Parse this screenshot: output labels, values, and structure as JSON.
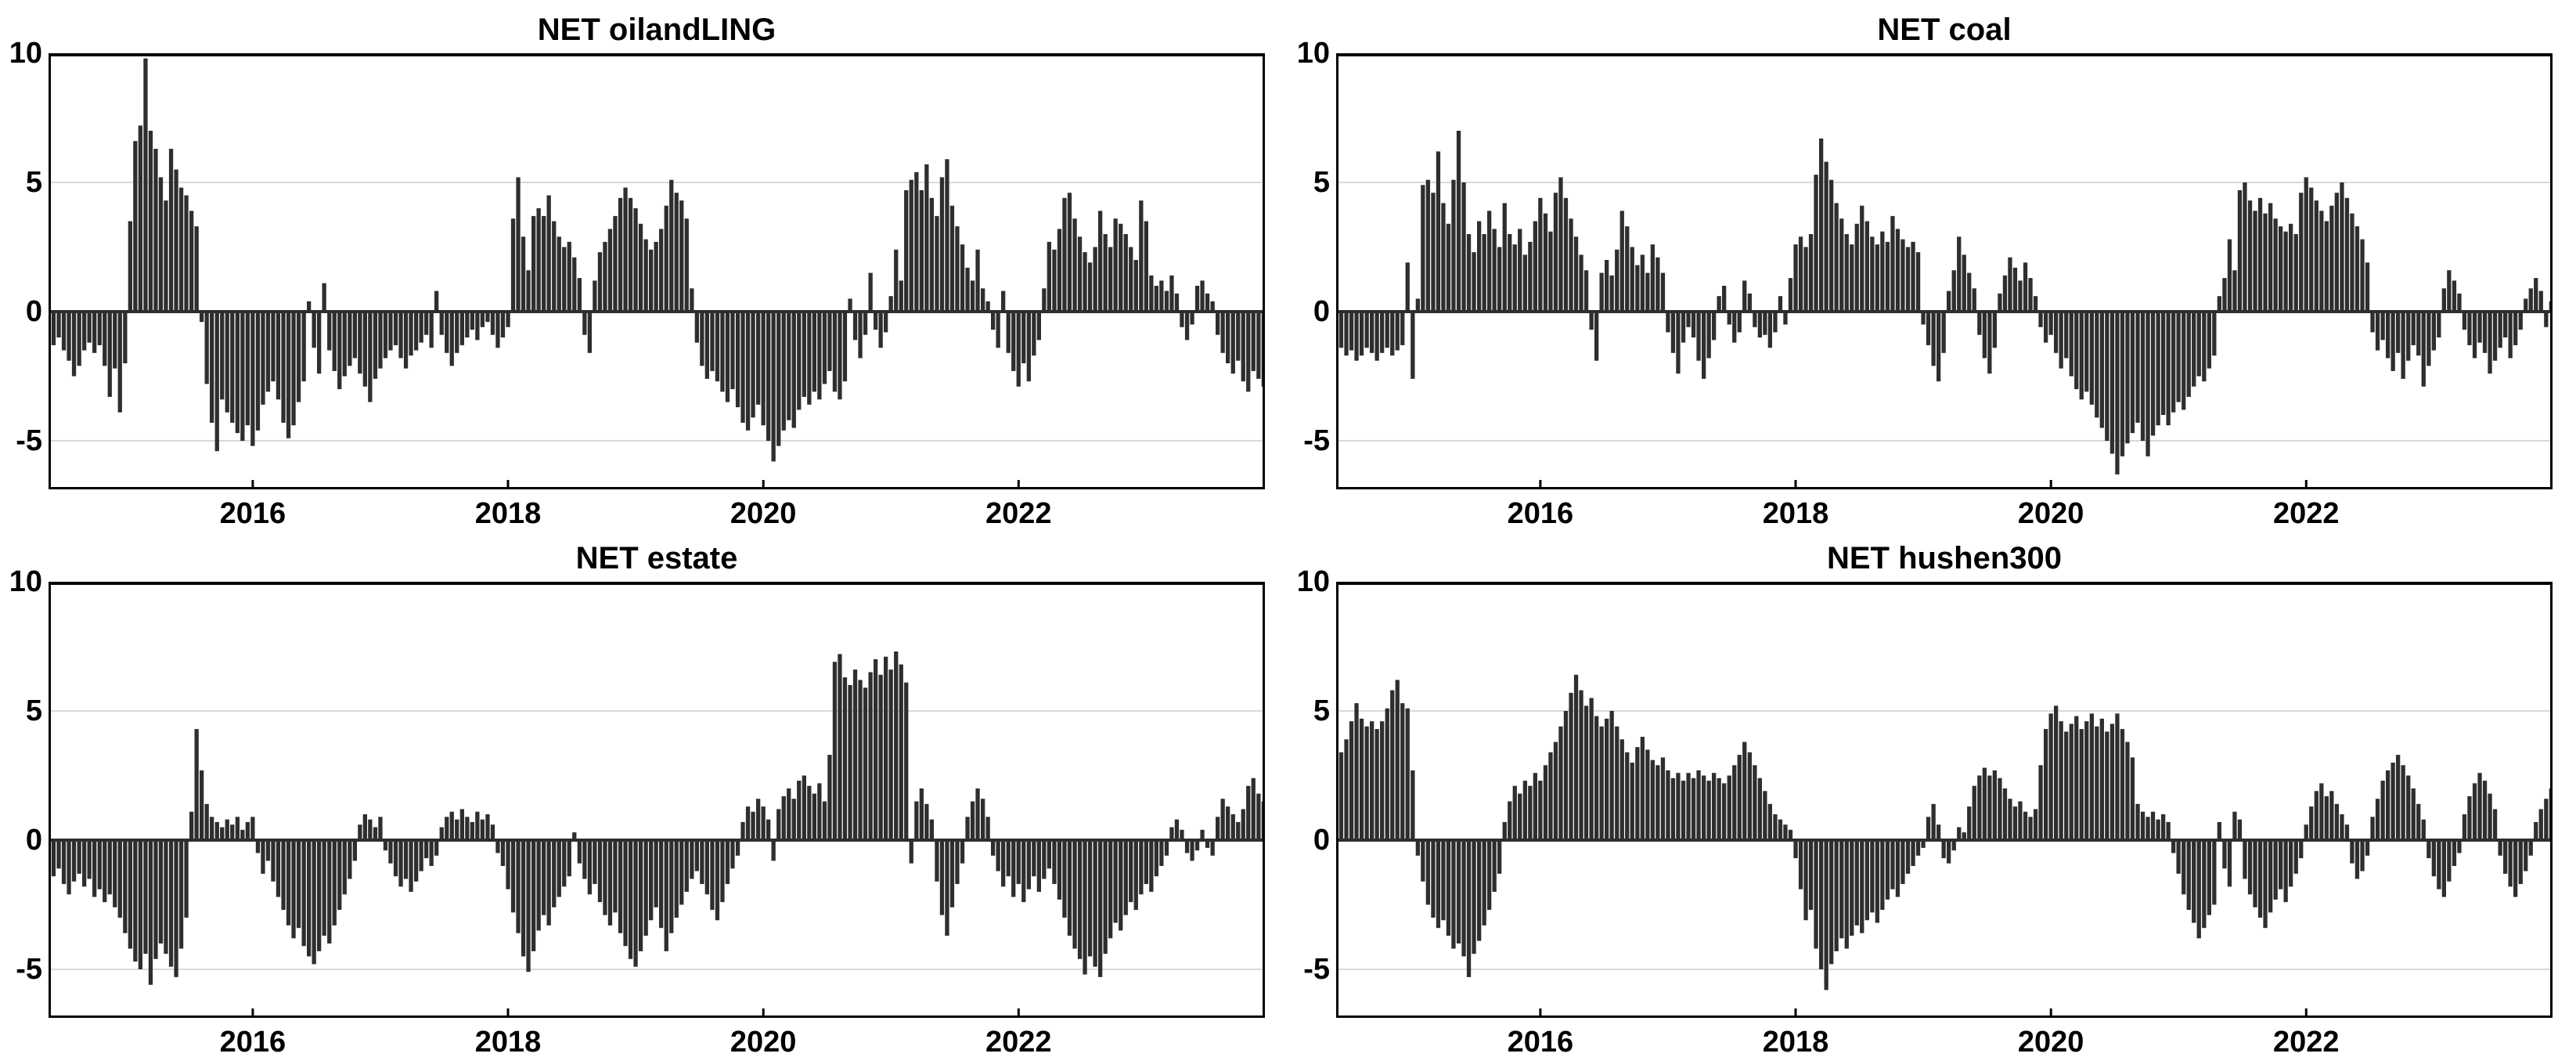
{
  "style": {
    "bar_color": "#2e2e2e",
    "grid_color": "#d9d9d9",
    "axis_color": "#000000",
    "background": "#ffffff"
  },
  "axes": {
    "y_ticks": [
      10,
      5,
      0,
      -5
    ],
    "x_ticks": [
      2016,
      2018,
      2020,
      2022
    ],
    "grid_values": [
      5,
      0,
      -5
    ],
    "ylim": [
      -6.88,
      10
    ],
    "xlim": [
      2014.4,
      2023.93
    ],
    "grid": true,
    "legend": "none"
  },
  "chart_data": [
    {
      "type": "bar",
      "title": "NET oilandLING",
      "xlabel": "",
      "ylabel": "",
      "x_start": 2014.4,
      "x_step": 0.04,
      "values": [
        -0.8,
        -1.3,
        -1.0,
        -1.5,
        -1.9,
        -2.5,
        -2.1,
        -1.5,
        -1.2,
        -1.6,
        -1.3,
        -2.1,
        -3.3,
        -2.2,
        -3.9,
        -2.0,
        3.5,
        6.6,
        7.2,
        9.8,
        7.0,
        6.3,
        5.2,
        4.3,
        6.3,
        5.5,
        4.8,
        4.5,
        3.9,
        3.3,
        -0.4,
        -2.8,
        -4.3,
        -5.4,
        -3.4,
        -3.9,
        -4.3,
        -4.7,
        -5.0,
        -4.4,
        -5.2,
        -4.6,
        -3.6,
        -3.1,
        -2.7,
        -3.4,
        -4.3,
        -4.9,
        -4.4,
        -3.5,
        -2.7,
        0.4,
        -1.4,
        -2.4,
        1.1,
        -1.5,
        -2.3,
        -3.0,
        -2.5,
        -2.1,
        -1.8,
        -2.4,
        -2.9,
        -3.5,
        -2.6,
        -2.2,
        -1.8,
        -1.5,
        -1.3,
        -1.8,
        -2.2,
        -1.7,
        -1.5,
        -1.2,
        -0.9,
        -1.4,
        0.8,
        -0.9,
        -1.6,
        -2.1,
        -1.6,
        -1.3,
        -1.0,
        -0.7,
        -1.1,
        -0.6,
        -0.4,
        -0.9,
        -1.4,
        -1.0,
        -0.6,
        3.6,
        5.2,
        2.9,
        1.6,
        3.7,
        4.0,
        3.7,
        4.5,
        3.5,
        2.9,
        2.5,
        2.7,
        2.1,
        1.3,
        -0.9,
        -1.6,
        1.2,
        2.3,
        2.7,
        3.2,
        3.7,
        4.4,
        4.8,
        4.4,
        4.0,
        3.4,
        2.8,
        2.4,
        2.7,
        3.2,
        4.1,
        5.1,
        4.6,
        4.3,
        3.6,
        0.9,
        -1.2,
        -2.1,
        -2.6,
        -2.3,
        -2.7,
        -3.1,
        -3.5,
        -3.0,
        -3.7,
        -4.3,
        -4.6,
        -4.1,
        -3.6,
        -4.4,
        -5.0,
        -5.8,
        -5.2,
        -4.6,
        -4.2,
        -4.5,
        -3.8,
        -3.3,
        -3.6,
        -3.1,
        -3.4,
        -2.8,
        -2.3,
        -3.1,
        -3.4,
        -2.7,
        0.5,
        -1.1,
        -1.8,
        -0.9,
        1.5,
        -0.7,
        -1.4,
        -0.8,
        0.6,
        2.4,
        1.2,
        4.7,
        5.1,
        5.4,
        4.7,
        5.7,
        4.4,
        3.7,
        5.2,
        5.9,
        4.1,
        3.3,
        2.6,
        1.7,
        1.2,
        2.4,
        0.9,
        0.4,
        -0.7,
        -1.4,
        0.8,
        -1.6,
        -2.3,
        -2.9,
        -2.0,
        -2.7,
        -1.7,
        -1.1,
        0.9,
        2.7,
        2.4,
        3.2,
        4.4,
        4.6,
        3.6,
        2.9,
        2.3,
        1.9,
        2.5,
        3.9,
        3.0,
        2.5,
        3.6,
        3.4,
        3.0,
        2.5,
        2.0,
        4.3,
        3.5,
        1.4,
        1.0,
        1.2,
        0.8,
        1.4,
        0.7,
        -0.6,
        -1.1,
        -0.5,
        1.0,
        1.2,
        0.7,
        0.4,
        -0.9,
        -1.6,
        -2.0,
        -2.4,
        -1.9,
        -2.7,
        -3.1,
        -2.3,
        -2.6,
        -2.9
      ]
    },
    {
      "type": "bar",
      "title": "NET coal",
      "xlabel": "",
      "ylabel": "",
      "x_start": 2014.4,
      "x_step": 0.04,
      "values": [
        -0.9,
        -1.4,
        -1.7,
        -1.5,
        -1.9,
        -1.7,
        -1.4,
        -1.6,
        -1.9,
        -1.6,
        -1.4,
        -1.7,
        -1.5,
        -1.3,
        1.9,
        -2.6,
        0.5,
        4.9,
        5.1,
        4.6,
        6.2,
        4.2,
        3.4,
        5.1,
        7.0,
        5.0,
        3.0,
        2.3,
        3.5,
        3.0,
        3.9,
        3.2,
        2.5,
        4.2,
        3.0,
        2.6,
        3.2,
        2.2,
        2.7,
        3.5,
        4.4,
        3.8,
        3.1,
        4.6,
        5.2,
        4.4,
        3.6,
        2.9,
        2.2,
        1.6,
        -0.7,
        -1.9,
        1.5,
        2.0,
        1.4,
        2.4,
        3.9,
        3.3,
        2.5,
        1.8,
        2.2,
        1.5,
        2.6,
        2.1,
        1.5,
        -0.8,
        -1.6,
        -2.4,
        -1.2,
        -0.6,
        -1.0,
        -1.9,
        -2.6,
        -1.8,
        -1.1,
        0.6,
        1.0,
        -0.5,
        -1.2,
        -0.8,
        1.2,
        0.7,
        -0.6,
        -1.0,
        -0.9,
        -1.4,
        -0.8,
        0.6,
        -0.5,
        1.3,
        2.6,
        2.9,
        2.5,
        3.0,
        5.3,
        6.7,
        5.8,
        5.1,
        4.2,
        3.6,
        3.0,
        2.6,
        3.4,
        4.1,
        3.5,
        2.9,
        2.6,
        3.1,
        2.7,
        3.7,
        3.2,
        2.8,
        2.5,
        2.7,
        2.3,
        -0.5,
        -1.3,
        -2.1,
        -2.7,
        -1.6,
        0.8,
        1.6,
        2.9,
        2.2,
        1.5,
        0.9,
        -0.9,
        -1.8,
        -2.4,
        -1.4,
        0.7,
        1.4,
        2.1,
        1.7,
        1.2,
        1.9,
        1.3,
        0.6,
        -0.6,
        -1.2,
        -0.9,
        -1.6,
        -2.2,
        -1.8,
        -2.5,
        -3.0,
        -3.4,
        -3.1,
        -3.6,
        -4.1,
        -4.5,
        -5.0,
        -5.5,
        -6.3,
        -5.6,
        -5.1,
        -4.7,
        -4.3,
        -5.0,
        -5.6,
        -4.8,
        -4.4,
        -4.0,
        -4.4,
        -3.9,
        -3.5,
        -3.8,
        -3.3,
        -2.9,
        -2.5,
        -2.7,
        -2.2,
        -1.7,
        0.6,
        1.3,
        2.8,
        1.6,
        4.7,
        5.0,
        4.3,
        3.9,
        4.4,
        3.8,
        4.2,
        3.6,
        3.3,
        3.1,
        3.4,
        3.0,
        4.6,
        5.2,
        4.8,
        4.3,
        3.9,
        3.5,
        4.1,
        4.6,
        5.0,
        4.4,
        3.8,
        3.3,
        2.8,
        1.9,
        -0.8,
        -1.5,
        -1.1,
        -1.8,
        -2.3,
        -1.6,
        -2.6,
        -1.9,
        -1.3,
        -1.7,
        -2.9,
        -2.1,
        -1.5,
        -1.0,
        0.9,
        1.6,
        1.2,
        0.7,
        -0.7,
        -1.3,
        -1.8,
        -1.2,
        -1.6,
        -2.4,
        -1.9,
        -1.4,
        -1.0,
        -1.8,
        -1.3,
        -0.7,
        0.5,
        0.9,
        1.3,
        0.8,
        -0.6,
        0.4
      ]
    },
    {
      "type": "bar",
      "title": "NET estate",
      "xlabel": "",
      "ylabel": "",
      "x_start": 2014.4,
      "x_step": 0.04,
      "values": [
        -0.9,
        -1.4,
        -1.1,
        -1.7,
        -2.1,
        -1.6,
        -1.3,
        -1.8,
        -1.5,
        -2.2,
        -1.9,
        -2.4,
        -2.1,
        -2.6,
        -3.0,
        -3.6,
        -4.2,
        -4.7,
        -5.0,
        -4.4,
        -5.6,
        -4.6,
        -4.0,
        -4.4,
        -4.9,
        -5.3,
        -4.2,
        -3.0,
        1.1,
        4.3,
        2.7,
        1.4,
        0.9,
        0.7,
        0.5,
        0.8,
        0.6,
        0.9,
        0.4,
        0.7,
        0.9,
        -0.5,
        -1.3,
        -0.8,
        -1.6,
        -2.2,
        -2.7,
        -3.3,
        -3.8,
        -3.4,
        -4.1,
        -4.5,
        -4.8,
        -4.3,
        -3.7,
        -4.0,
        -3.3,
        -2.7,
        -2.1,
        -1.5,
        -0.8,
        0.6,
        1.0,
        0.8,
        0.5,
        0.9,
        -0.4,
        -0.9,
        -1.4,
        -1.8,
        -1.5,
        -2.0,
        -1.6,
        -1.2,
        -0.7,
        -1.0,
        -0.6,
        0.5,
        0.9,
        1.1,
        0.8,
        1.2,
        0.9,
        0.7,
        1.1,
        0.8,
        1.0,
        0.6,
        -0.5,
        -1.0,
        -1.9,
        -2.8,
        -3.6,
        -4.5,
        -5.1,
        -4.3,
        -3.5,
        -2.9,
        -3.3,
        -2.6,
        -2.2,
        -1.8,
        -1.4,
        0.3,
        -0.9,
        -1.5,
        -2.1,
        -1.7,
        -2.4,
        -2.9,
        -3.3,
        -2.8,
        -3.6,
        -4.1,
        -4.6,
        -4.9,
        -4.3,
        -3.7,
        -3.1,
        -2.6,
        -3.4,
        -4.3,
        -3.6,
        -3.0,
        -2.5,
        -2.0,
        -1.5,
        -1.2,
        -1.7,
        -2.1,
        -2.7,
        -3.1,
        -2.4,
        -1.7,
        -1.1,
        -0.6,
        0.7,
        1.3,
        1.1,
        1.6,
        1.3,
        0.8,
        -0.8,
        1.2,
        1.7,
        2.0,
        1.6,
        2.3,
        2.5,
        2.1,
        1.8,
        2.2,
        1.5,
        3.3,
        6.9,
        7.2,
        6.3,
        6.0,
        6.6,
        6.2,
        5.9,
        6.5,
        7.0,
        6.4,
        7.1,
        6.6,
        7.3,
        6.8,
        6.1,
        -0.9,
        1.5,
        2.0,
        1.4,
        0.8,
        -1.6,
        -2.9,
        -3.7,
        -2.6,
        -1.7,
        -0.9,
        0.9,
        1.5,
        2.0,
        1.6,
        0.9,
        -0.6,
        -1.2,
        -1.8,
        -1.4,
        -2.2,
        -1.7,
        -2.4,
        -1.9,
        -1.4,
        -2.0,
        -1.5,
        -1.1,
        -1.7,
        -2.3,
        -3.0,
        -3.7,
        -4.2,
        -4.6,
        -5.2,
        -4.5,
        -4.9,
        -5.3,
        -4.4,
        -3.8,
        -3.2,
        -3.5,
        -2.9,
        -2.4,
        -2.7,
        -2.1,
        -1.7,
        -2.0,
        -1.4,
        -1.0,
        -0.6,
        0.5,
        0.8,
        0.4,
        -0.5,
        -0.8,
        -0.4,
        0.4,
        -0.3,
        -0.6,
        0.9,
        1.6,
        1.3,
        1.0,
        0.7,
        1.2,
        2.1,
        2.4,
        1.8,
        1.5
      ]
    },
    {
      "type": "bar",
      "title": "NET hushen300",
      "xlabel": "",
      "ylabel": "",
      "x_start": 2014.4,
      "x_step": 0.04,
      "values": [
        3.0,
        3.4,
        3.9,
        4.6,
        5.3,
        4.7,
        4.4,
        4.6,
        4.3,
        4.6,
        5.1,
        5.8,
        6.2,
        5.3,
        5.1,
        2.7,
        -0.6,
        -1.6,
        -2.5,
        -3.0,
        -3.4,
        -3.1,
        -3.7,
        -4.2,
        -4.0,
        -4.5,
        -5.3,
        -4.4,
        -3.9,
        -3.3,
        -2.7,
        -2.0,
        -1.3,
        0.7,
        1.5,
        2.1,
        1.8,
        2.3,
        2.1,
        2.6,
        2.3,
        2.9,
        3.4,
        3.8,
        4.4,
        5.0,
        5.7,
        6.4,
        5.8,
        5.2,
        5.5,
        4.8,
        4.4,
        4.7,
        5.0,
        4.4,
        3.9,
        3.4,
        3.0,
        3.6,
        4.0,
        3.5,
        3.1,
        2.9,
        3.2,
        2.7,
        2.4,
        2.6,
        2.3,
        2.6,
        2.4,
        2.7,
        2.5,
        2.3,
        2.6,
        2.4,
        2.2,
        2.5,
        2.9,
        3.3,
        3.8,
        3.4,
        2.9,
        2.4,
        1.9,
        1.4,
        1.0,
        0.8,
        0.6,
        0.4,
        -0.7,
        -1.9,
        -3.1,
        -2.7,
        -4.2,
        -5.0,
        -5.8,
        -4.8,
        -4.3,
        -3.8,
        -4.2,
        -3.7,
        -3.3,
        -3.6,
        -3.1,
        -2.8,
        -3.2,
        -2.7,
        -2.3,
        -1.9,
        -2.2,
        -1.7,
        -1.3,
        -1.0,
        -0.6,
        -0.3,
        0.9,
        1.4,
        0.6,
        -0.7,
        -0.9,
        -0.4,
        0.5,
        0.3,
        1.3,
        2.1,
        2.5,
        2.8,
        2.5,
        2.7,
        2.4,
        2.0,
        1.6,
        1.3,
        1.5,
        1.1,
        0.9,
        1.2,
        2.9,
        4.3,
        4.9,
        5.2,
        4.6,
        4.2,
        4.5,
        4.8,
        4.3,
        4.6,
        4.9,
        4.4,
        4.7,
        4.2,
        4.5,
        4.9,
        4.3,
        3.8,
        3.2,
        1.4,
        1.1,
        0.9,
        1.1,
        0.8,
        1.0,
        0.7,
        -0.5,
        -1.3,
        -2.1,
        -2.7,
        -3.2,
        -3.8,
        -3.4,
        -2.9,
        -2.5,
        0.7,
        -1.1,
        -1.8,
        1.1,
        0.8,
        -1.5,
        -2.1,
        -2.6,
        -3.0,
        -3.4,
        -2.8,
        -2.3,
        -1.9,
        -2.4,
        -1.8,
        -1.3,
        -0.7,
        0.6,
        1.3,
        1.9,
        2.2,
        1.7,
        1.9,
        1.4,
        1.0,
        0.6,
        -0.9,
        -1.5,
        -1.2,
        -0.6,
        0.9,
        1.6,
        2.3,
        2.7,
        3.0,
        3.3,
        2.9,
        2.5,
        2.0,
        1.4,
        0.8,
        -0.7,
        -1.4,
        -1.9,
        -2.2,
        -1.6,
        -1.0,
        -0.5,
        1.0,
        1.7,
        2.2,
        2.6,
        2.3,
        1.8,
        1.2,
        -0.6,
        -1.3,
        -1.8,
        -2.2,
        -1.7,
        -1.2,
        -0.6,
        0.7,
        1.2,
        1.6,
        2.0
      ]
    }
  ]
}
